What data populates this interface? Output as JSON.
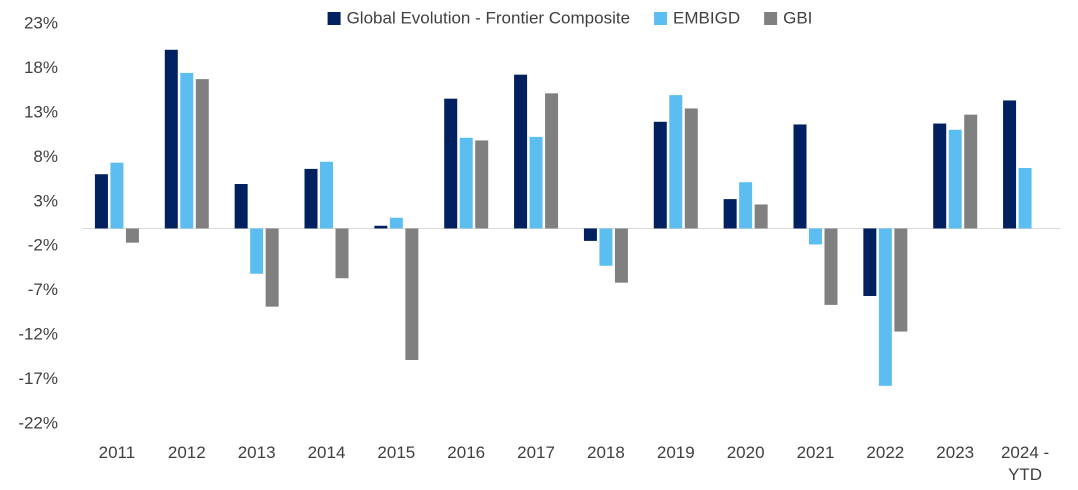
{
  "chart_data": {
    "type": "bar",
    "categories": [
      "2011",
      "2012",
      "2013",
      "2014",
      "2015",
      "2016",
      "2017",
      "2018",
      "2019",
      "2020",
      "2021",
      "2022",
      "2023",
      "2024 - YTD"
    ],
    "series": [
      {
        "name": "Global Evolution - Frontier Composite",
        "color": "#002060",
        "values": [
          6.1,
          20.1,
          5.0,
          6.7,
          0.3,
          14.6,
          17.3,
          -1.4,
          12.0,
          3.3,
          11.7,
          -7.6,
          11.8,
          14.4
        ]
      },
      {
        "name": "EMBIGD",
        "color": "#5BBDF0",
        "values": [
          7.4,
          17.5,
          -5.1,
          7.5,
          1.2,
          10.2,
          10.3,
          -4.2,
          15.0,
          5.2,
          -1.8,
          -17.7,
          11.1,
          6.8
        ]
      },
      {
        "name": "GBI",
        "color": "#808080",
        "values": [
          -1.6,
          16.8,
          -8.8,
          -5.6,
          -14.8,
          9.9,
          15.2,
          -6.1,
          13.5,
          2.7,
          -8.6,
          -11.6,
          12.8,
          null
        ]
      }
    ],
    "ylim": [
      -22,
      23
    ],
    "yticks": [
      {
        "value": -22,
        "label": "-22%"
      },
      {
        "value": -17,
        "label": "-17%"
      },
      {
        "value": -12,
        "label": "-12%"
      },
      {
        "value": -7,
        "label": "-7%"
      },
      {
        "value": -2,
        "label": "-2%"
      },
      {
        "value": 3,
        "label": "3%"
      },
      {
        "value": 8,
        "label": "8%"
      },
      {
        "value": 13,
        "label": "13%"
      },
      {
        "value": 18,
        "label": "18%"
      },
      {
        "value": 23,
        "label": "23%"
      }
    ],
    "grid": false,
    "legend": "top"
  }
}
